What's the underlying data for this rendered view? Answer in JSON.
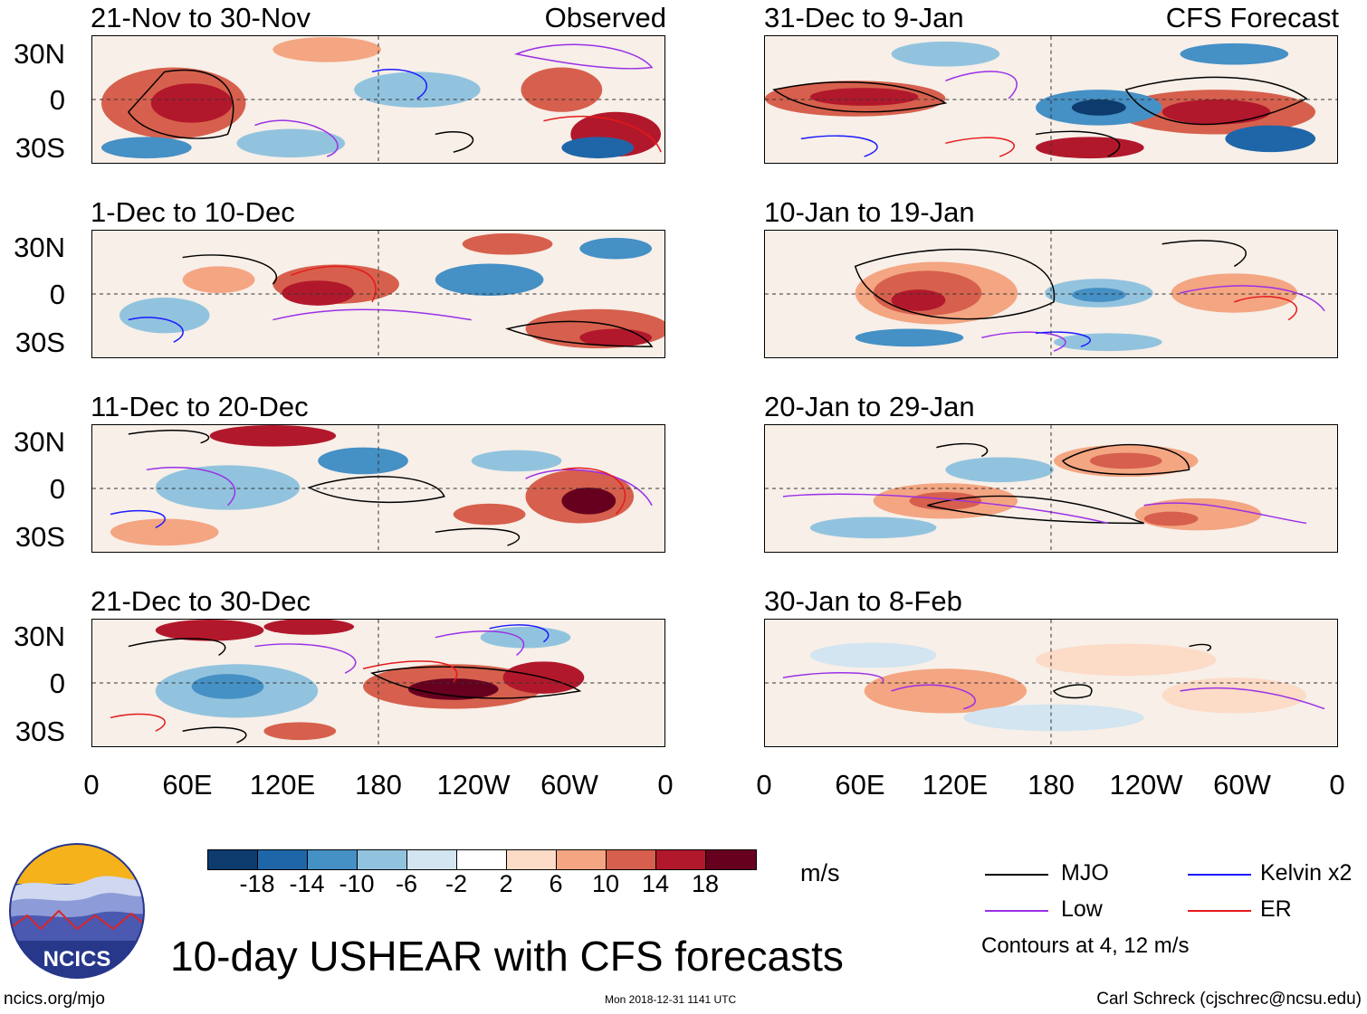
{
  "observed_label": "Observed",
  "forecast_label": "CFS Forecast",
  "observed_panels": [
    "21-Nov to 30-Nov",
    "1-Dec to 10-Dec",
    "11-Dec to 20-Dec",
    "21-Dec to 30-Dec"
  ],
  "forecast_panels": [
    "31-Dec to 9-Jan",
    "10-Jan to 19-Jan",
    "20-Jan to 29-Jan",
    "30-Jan to 8-Feb"
  ],
  "y_labels": [
    "30N",
    "0",
    "30S"
  ],
  "x_labels": [
    "0",
    "60E",
    "120E",
    "180",
    "120W",
    "60W",
    "0"
  ],
  "colorbar": {
    "ticks": [
      "-18",
      "-14",
      "-10",
      "-6",
      "-2",
      "2",
      "6",
      "10",
      "14",
      "18"
    ],
    "colors": [
      "#0d3b6e",
      "#1f66a8",
      "#4590c5",
      "#92c3de",
      "#d2e5f0",
      "#ffffff",
      "#fcdbc7",
      "#f4a582",
      "#d6604d",
      "#b2182b",
      "#67001f"
    ],
    "unit": "m/s"
  },
  "legend": {
    "items": [
      {
        "label": "MJO",
        "color": "#000000"
      },
      {
        "label": "Kelvin x2",
        "color": "#1a1aff"
      },
      {
        "label": "Low",
        "color": "#9b30e6"
      },
      {
        "label": "ER",
        "color": "#e6191a"
      }
    ],
    "note": "Contours at 4, 12 m/s"
  },
  "main_title": "10-day USHEAR with CFS forecasts",
  "logo_text": "NCICS",
  "footer": {
    "url": "ncics.org/mjo",
    "timestamp": "Mon 2018-12-31 1141 UTC",
    "author": "Carl Schreck (cjschrec@ncsu.edu)"
  }
}
